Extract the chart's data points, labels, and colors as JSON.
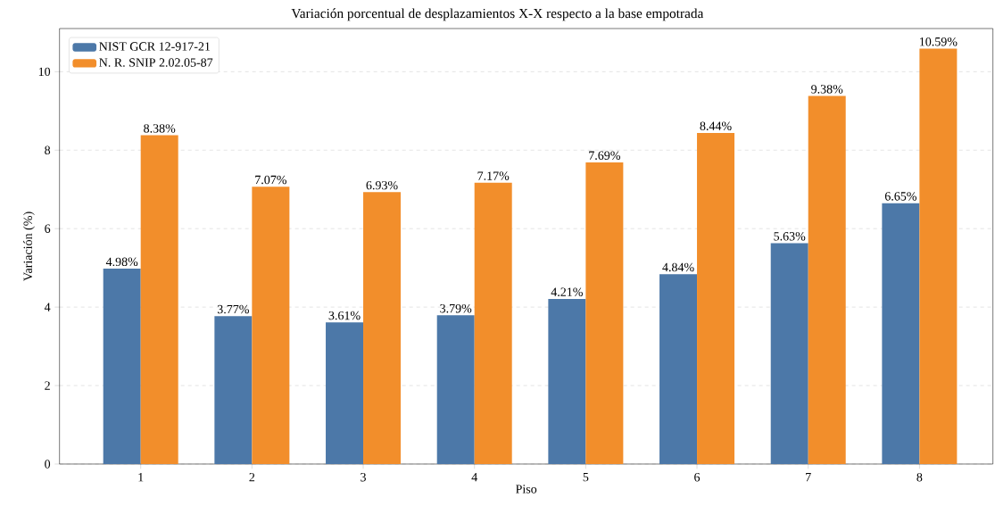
{
  "chart_data": {
    "type": "bar",
    "title": "Variación porcentual de desplazamientos X-X respecto a la base empotrada",
    "xlabel": "Piso",
    "ylabel": "Variación (%)",
    "categories": [
      "1",
      "2",
      "3",
      "4",
      "5",
      "6",
      "7",
      "8"
    ],
    "series": [
      {
        "name": "NIST GCR 12-917-21",
        "color": "#4c78a8",
        "values": [
          4.98,
          3.77,
          3.61,
          3.79,
          4.21,
          4.84,
          5.63,
          6.65
        ],
        "value_labels": [
          "4.98%",
          "3.77%",
          "3.61%",
          "3.79%",
          "4.21%",
          "4.84%",
          "5.63%",
          "6.65%"
        ]
      },
      {
        "name": "N. R. SNIP 2.02.05-87",
        "color": "#f28e2b",
        "values": [
          8.38,
          7.07,
          6.93,
          7.17,
          7.69,
          8.44,
          9.38,
          10.59
        ],
        "value_labels": [
          "8.38%",
          "7.07%",
          "6.93%",
          "7.17%",
          "7.69%",
          "8.44%",
          "9.38%",
          "10.59%"
        ]
      }
    ],
    "ylim": [
      0,
      11.1
    ],
    "yticks": [
      0,
      2,
      4,
      6,
      8,
      10
    ],
    "grid": "y",
    "legend": "top left"
  }
}
